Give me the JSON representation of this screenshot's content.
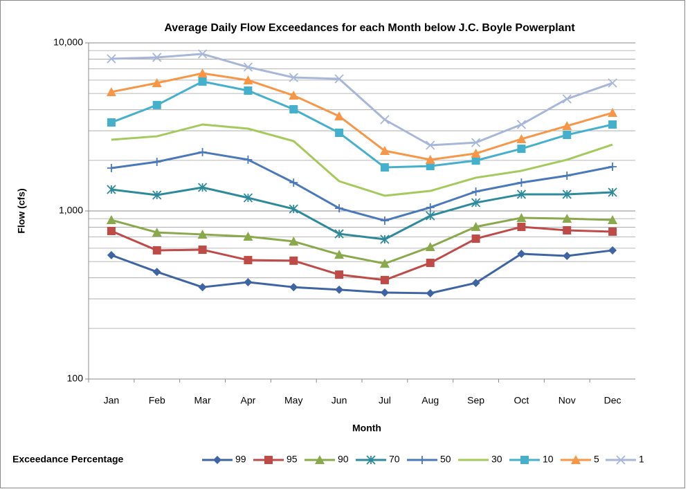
{
  "chart_data": {
    "type": "line",
    "title": "Average Daily Flow Exceedances for each Month below J.C. Boyle Powerplant",
    "x_label": "Month",
    "y_label": "Flow (cfs)",
    "legend_title": "Exceedance Percentage",
    "legend": "bottom",
    "log_scale": true,
    "grid": true,
    "minor_grid": true,
    "categories": [
      "Jan",
      "Feb",
      "Mar",
      "Apr",
      "May",
      "Jun",
      "Jul",
      "Aug",
      "Sep",
      "Oct",
      "Nov",
      "Dec"
    ],
    "ylim": [
      100,
      10000
    ],
    "yticks": [
      100,
      {
        "value": 1000,
        "label": "1,000"
      },
      {
        "value": 10000,
        "label": "10,000"
      }
    ],
    "series": [
      {
        "name": "99",
        "color": "#3f64a4",
        "marker": "diamond",
        "values": [
          546,
          434,
          352,
          377,
          352,
          340,
          327,
          324,
          373,
          556,
          540,
          583
        ]
      },
      {
        "name": "95",
        "color": "#be4b48",
        "marker": "square",
        "values": [
          760,
          583,
          588,
          510,
          506,
          418,
          388,
          491,
          684,
          804,
          767,
          753
        ]
      },
      {
        "name": "90",
        "color": "#8aa84c",
        "marker": "triangle",
        "values": [
          884,
          745,
          725,
          704,
          659,
          550,
          486,
          611,
          805,
          910,
          900,
          884
        ]
      },
      {
        "name": "70",
        "color": "#2d8a9a",
        "marker": "asterisk",
        "values": [
          1342,
          1244,
          1380,
          1197,
          1028,
          731,
          678,
          936,
          1120,
          1256,
          1256,
          1291
        ]
      },
      {
        "name": "50",
        "color": "#4a78bb",
        "marker": "plus",
        "values": [
          1800,
          1960,
          2239,
          2018,
          1475,
          1038,
          876,
          1049,
          1304,
          1475,
          1622,
          1834
        ]
      },
      {
        "name": "30",
        "color": "#a6c95e",
        "marker": "none",
        "values": [
          2654,
          2781,
          3268,
          3088,
          2604,
          1503,
          1232,
          1316,
          1577,
          1733,
          2018,
          2483
        ]
      },
      {
        "name": "10",
        "color": "#45b0cc",
        "marker": "square",
        "values": [
          3362,
          4266,
          5888,
          5200,
          4027,
          2917,
          1816,
          1849,
          1995,
          2344,
          2836,
          3268
        ]
      },
      {
        "name": "5",
        "color": "#f79646",
        "marker": "triangle",
        "values": [
          5105,
          5770,
          6590,
          5998,
          4864,
          3664,
          2280,
          2018,
          2198,
          2679,
          3206,
          3840
        ]
      },
      {
        "name": "1",
        "color": "#a7b6d9",
        "marker": "x",
        "values": [
          8040,
          8200,
          8590,
          7177,
          6223,
          6110,
          3493,
          2460,
          2553,
          3268,
          4641,
          5770
        ]
      }
    ]
  }
}
